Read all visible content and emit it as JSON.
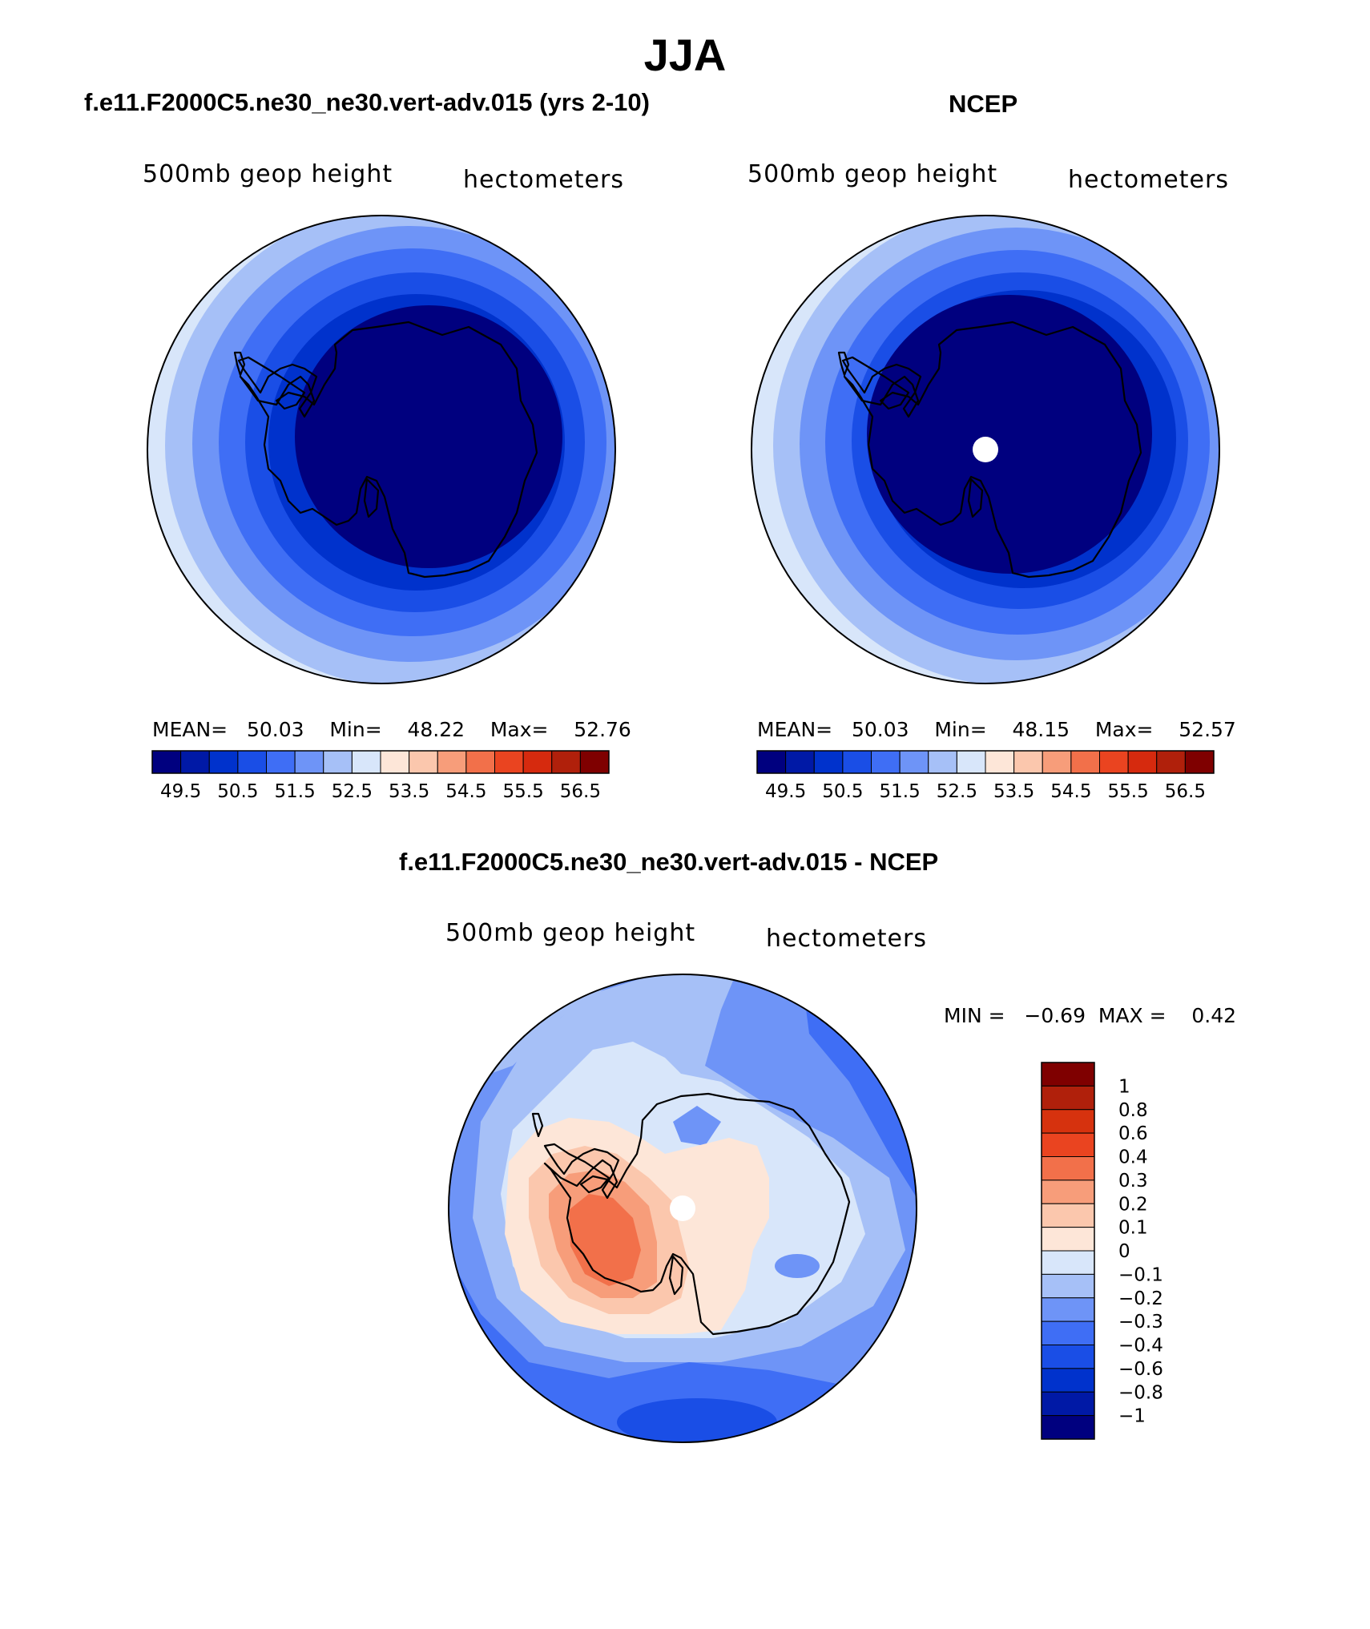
{
  "figure": {
    "title": "JJA"
  },
  "panels": {
    "model": {
      "title": "f.e11.F2000C5.ne30_ne30.vert-adv.015 (yrs 2-10)",
      "left_label": "500mb geop height",
      "right_label": "hectometers",
      "mean_label": "MEAN=",
      "mean_value": "50.03",
      "min_label": "Min=",
      "min_value": "48.22",
      "max_label": "Max=",
      "max_value": "52.76"
    },
    "obs": {
      "title": "NCEP",
      "left_label": "500mb geop height",
      "right_label": "hectometers",
      "mean_label": "MEAN=",
      "mean_value": "50.03",
      "min_label": "Min=",
      "min_value": "48.15",
      "max_label": "Max=",
      "max_value": "52.57"
    },
    "diff": {
      "title": "f.e11.F2000C5.ne30_ne30.vert-adv.015 - NCEP",
      "left_label": "500mb geop height",
      "right_label": "hectometers",
      "minmax": "MIN =   −0.69  MAX =    0.42"
    }
  },
  "colorbars": {
    "horizontal": {
      "colors": [
        "#00007f",
        "#0019a6",
        "#0032cc",
        "#1a4ee6",
        "#3f6ef5",
        "#6e94f7",
        "#a6c0f7",
        "#d8e6fa",
        "#fde6d8",
        "#fbc7ad",
        "#f79d7a",
        "#f2704a",
        "#ea4420",
        "#d62a0e",
        "#b0200b",
        "#7f0000"
      ],
      "tick_labels": [
        "49.5",
        "50.5",
        "51.5",
        "52.5",
        "53.5",
        "54.5",
        "55.5",
        "56.5"
      ]
    },
    "vertical": {
      "colors_top_to_bottom": [
        "#7f0000",
        "#b0200b",
        "#d6320e",
        "#ea4420",
        "#f2704a",
        "#f79d7a",
        "#fbc7ad",
        "#fde6d8",
        "#d8e6fa",
        "#a6c0f7",
        "#6e94f7",
        "#3f6ef5",
        "#1a4ee6",
        "#0032cc",
        "#0019a6",
        "#00007f"
      ],
      "tick_labels": [
        "1",
        "0.8",
        "0.6",
        "0.4",
        "0.3",
        "0.2",
        "0.1",
        "0",
        "−0.1",
        "−0.2",
        "−0.3",
        "−0.4",
        "−0.6",
        "−0.8",
        "−1"
      ]
    }
  }
}
